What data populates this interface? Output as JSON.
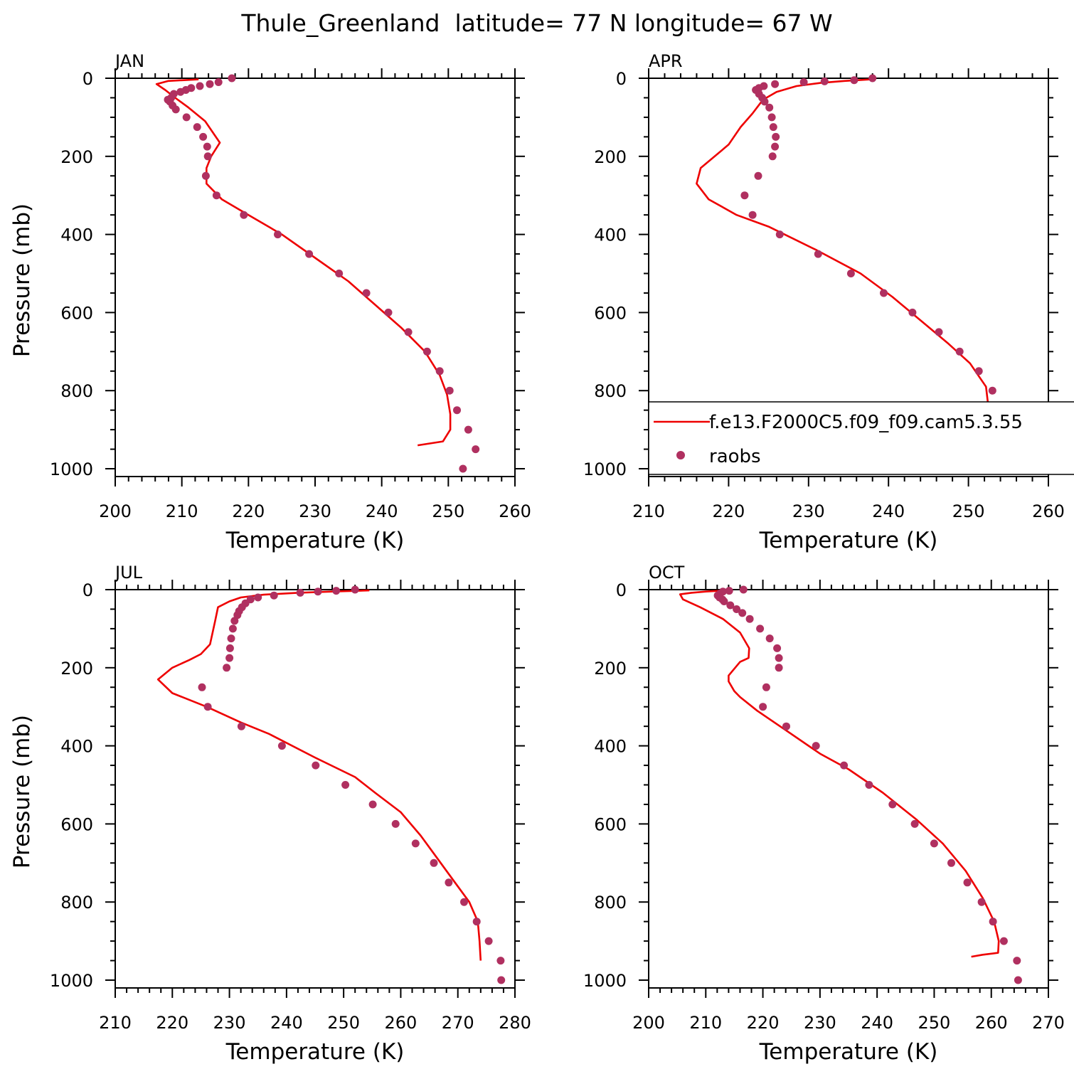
{
  "title": "Thule_Greenland  latitude= 77 N longitude= 67 W",
  "colors": {
    "model": "#ee0000",
    "obs": "#b03060",
    "axis": "#000000"
  },
  "legend": {
    "model_label": "f.e13.F2000C5.f09_f09.cam5.3.55",
    "obs_label": "raobs"
  },
  "chart_data": [
    {
      "type": "line",
      "panel": "JAN",
      "xlabel": "Temperature (K)",
      "ylabel": "Pressure (mb)",
      "xlim": [
        200,
        260
      ],
      "ylim": [
        1020,
        0
      ],
      "xticks": [
        "200",
        "210",
        "220",
        "230",
        "240",
        "250",
        "260"
      ],
      "yticks": [
        "0",
        "200",
        "400",
        "600",
        "800",
        "1000"
      ],
      "series": [
        {
          "kind": "model-line",
          "points": [
            [
              212.5,
              3
            ],
            [
              208,
              7
            ],
            [
              206.2,
              15
            ],
            [
              207.5,
              30
            ],
            [
              209,
              50
            ],
            [
              211,
              75
            ],
            [
              213.5,
              110
            ],
            [
              215.7,
              165
            ],
            [
              214.4,
              200
            ],
            [
              213.7,
              230
            ],
            [
              213.7,
              270
            ],
            [
              216,
              310
            ],
            [
              220,
              350
            ],
            [
              225,
              400
            ],
            [
              230,
              460
            ],
            [
              235,
              520
            ],
            [
              239,
              580
            ],
            [
              243,
              640
            ],
            [
              246.5,
              700
            ],
            [
              248.7,
              760
            ],
            [
              249.8,
              810
            ],
            [
              250.3,
              860
            ],
            [
              250.3,
              900
            ],
            [
              249.2,
              930
            ],
            [
              245.4,
              940
            ]
          ]
        },
        {
          "kind": "obs-points",
          "points": [
            [
              217.5,
              0
            ],
            [
              215.5,
              10
            ],
            [
              214.2,
              15
            ],
            [
              212.7,
              20
            ],
            [
              211.4,
              25
            ],
            [
              210.6,
              30
            ],
            [
              209.8,
              35
            ],
            [
              208.8,
              40
            ],
            [
              208.4,
              50
            ],
            [
              207.9,
              55
            ],
            [
              208.2,
              60
            ],
            [
              208.6,
              70
            ],
            [
              209.1,
              80
            ],
            [
              210.7,
              100
            ],
            [
              212.3,
              125
            ],
            [
              213.2,
              150
            ],
            [
              213.8,
              175
            ],
            [
              213.9,
              200
            ],
            [
              213.6,
              250
            ],
            [
              215.2,
              300
            ],
            [
              219.3,
              350
            ],
            [
              224.4,
              400
            ],
            [
              229.1,
              450
            ],
            [
              233.6,
              500
            ],
            [
              237.7,
              550
            ],
            [
              241,
              600
            ],
            [
              244,
              650
            ],
            [
              246.8,
              700
            ],
            [
              248.7,
              750
            ],
            [
              250.2,
              800
            ],
            [
              251.3,
              850
            ],
            [
              253,
              900
            ],
            [
              254.1,
              950
            ],
            [
              252.2,
              1000
            ]
          ]
        }
      ]
    },
    {
      "type": "line",
      "panel": "APR",
      "xlabel": "Temperature (K)",
      "ylabel": "",
      "xlim": [
        210,
        260
      ],
      "ylim": [
        1020,
        0
      ],
      "xticks": [
        "210",
        "220",
        "230",
        "240",
        "250",
        "260"
      ],
      "yticks": [
        "0",
        "200",
        "400",
        "600",
        "800",
        "1000"
      ],
      "series": [
        {
          "kind": "model-line",
          "points": [
            [
              237.8,
              3
            ],
            [
              234.5,
              7
            ],
            [
              231.5,
              12
            ],
            [
              228.5,
              20
            ],
            [
              226,
              35
            ],
            [
              224.3,
              55
            ],
            [
              223,
              90
            ],
            [
              221.5,
              125
            ],
            [
              220,
              170
            ],
            [
              216.5,
              230
            ],
            [
              216,
              270
            ],
            [
              217.5,
              310
            ],
            [
              221,
              350
            ],
            [
              225,
              380
            ],
            [
              231,
              440
            ],
            [
              236.5,
              500
            ],
            [
              240.5,
              560
            ],
            [
              244,
              620
            ],
            [
              247.5,
              680
            ],
            [
              250.2,
              730
            ],
            [
              252.2,
              790
            ],
            [
              252.6,
              860
            ],
            [
              252.3,
              900
            ],
            [
              251.3,
              930
            ],
            [
              249.3,
              950
            ]
          ]
        },
        {
          "kind": "obs-points",
          "points": [
            [
              238,
              0
            ],
            [
              235.7,
              5
            ],
            [
              232,
              8
            ],
            [
              229.4,
              10
            ],
            [
              225.8,
              15
            ],
            [
              224.4,
              20
            ],
            [
              223.8,
              25
            ],
            [
              223.4,
              30
            ],
            [
              223.8,
              40
            ],
            [
              224.2,
              50
            ],
            [
              224.5,
              60
            ],
            [
              225.1,
              75
            ],
            [
              225.4,
              100
            ],
            [
              225.6,
              125
            ],
            [
              225.9,
              150
            ],
            [
              225.8,
              175
            ],
            [
              225.5,
              200
            ],
            [
              223.7,
              250
            ],
            [
              222,
              300
            ],
            [
              223,
              350
            ],
            [
              226.4,
              400
            ],
            [
              231.2,
              450
            ],
            [
              235.3,
              500
            ],
            [
              239.4,
              550
            ],
            [
              243,
              600
            ],
            [
              246.3,
              650
            ],
            [
              248.9,
              700
            ],
            [
              251.3,
              750
            ],
            [
              253,
              800
            ],
            [
              254.2,
              850
            ],
            [
              256,
              900
            ],
            [
              257,
              950
            ],
            [
              257,
              1000
            ]
          ]
        }
      ]
    },
    {
      "type": "line",
      "panel": "JUL",
      "xlabel": "Temperature (K)",
      "ylabel": "Pressure (mb)",
      "xlim": [
        210,
        280
      ],
      "ylim": [
        1020,
        0
      ],
      "xticks": [
        "210",
        "220",
        "230",
        "240",
        "250",
        "260",
        "270",
        "280"
      ],
      "yticks": [
        "0",
        "200",
        "400",
        "600",
        "800",
        "1000"
      ],
      "series": [
        {
          "kind": "model-line",
          "points": [
            [
              254.5,
              2
            ],
            [
              248,
              5
            ],
            [
              242,
              8
            ],
            [
              236,
              13
            ],
            [
              232,
              20
            ],
            [
              230,
              30
            ],
            [
              228,
              45
            ],
            [
              227.5,
              80
            ],
            [
              226.6,
              140
            ],
            [
              225,
              165
            ],
            [
              223,
              180
            ],
            [
              220,
              200
            ],
            [
              217.5,
              230
            ],
            [
              220,
              265
            ],
            [
              226,
              300
            ],
            [
              232,
              340
            ],
            [
              237,
              370
            ],
            [
              245,
              430
            ],
            [
              252,
              480
            ],
            [
              255.5,
              520
            ],
            [
              260,
              570
            ],
            [
              263.5,
              630
            ],
            [
              266.5,
              690
            ],
            [
              269.5,
              750
            ],
            [
              272,
              800
            ],
            [
              273.5,
              850
            ],
            [
              273.8,
              900
            ],
            [
              274,
              950
            ]
          ]
        },
        {
          "kind": "obs-points",
          "points": [
            [
              252,
              0
            ],
            [
              248.7,
              3
            ],
            [
              245.5,
              5
            ],
            [
              242.4,
              8
            ],
            [
              237.8,
              15
            ],
            [
              235,
              20
            ],
            [
              233.7,
              25
            ],
            [
              232.8,
              35
            ],
            [
              232.2,
              45
            ],
            [
              231.7,
              55
            ],
            [
              231.4,
              65
            ],
            [
              230.9,
              80
            ],
            [
              230.6,
              100
            ],
            [
              230.3,
              125
            ],
            [
              230.1,
              150
            ],
            [
              230,
              175
            ],
            [
              229.5,
              200
            ],
            [
              225.2,
              250
            ],
            [
              226.2,
              300
            ],
            [
              232.1,
              350
            ],
            [
              239.2,
              400
            ],
            [
              245.1,
              450
            ],
            [
              250.3,
              500
            ],
            [
              255.1,
              550
            ],
            [
              259.1,
              600
            ],
            [
              262.6,
              650
            ],
            [
              265.8,
              700
            ],
            [
              268.4,
              750
            ],
            [
              271.1,
              800
            ],
            [
              273.3,
              850
            ],
            [
              275.4,
              900
            ],
            [
              277.5,
              950
            ],
            [
              277.6,
              1000
            ]
          ]
        }
      ]
    },
    {
      "type": "line",
      "panel": "OCT",
      "xlabel": "Temperature (K)",
      "ylabel": "",
      "xlim": [
        200,
        270
      ],
      "ylim": [
        1020,
        0
      ],
      "xticks": [
        "200",
        "210",
        "220",
        "230",
        "240",
        "250",
        "260",
        "270"
      ],
      "yticks": [
        "0",
        "200",
        "400",
        "600",
        "800",
        "1000"
      ],
      "series": [
        {
          "kind": "model-line",
          "points": [
            [
              213.5,
              2
            ],
            [
              210,
              5
            ],
            [
              207.5,
              8
            ],
            [
              205.5,
              12
            ],
            [
              206,
              25
            ],
            [
              209,
              45
            ],
            [
              213,
              75
            ],
            [
              216,
              110
            ],
            [
              217.6,
              150
            ],
            [
              217.5,
              175
            ],
            [
              216,
              185
            ],
            [
              214,
              220
            ],
            [
              214,
              235
            ],
            [
              215,
              260
            ],
            [
              216,
              275
            ],
            [
              219,
              310
            ],
            [
              224,
              360
            ],
            [
              230,
              420
            ],
            [
              235,
              460
            ],
            [
              241,
              520
            ],
            [
              247,
              590
            ],
            [
              251.5,
              650
            ],
            [
              255.5,
              720
            ],
            [
              258.5,
              790
            ],
            [
              260.5,
              850
            ],
            [
              261.3,
              900
            ],
            [
              261.2,
              930
            ],
            [
              258.5,
              935
            ],
            [
              256.5,
              940
            ]
          ]
        },
        {
          "kind": "obs-points",
          "points": [
            [
              216.6,
              0
            ],
            [
              214.1,
              3
            ],
            [
              213,
              5
            ],
            [
              212.5,
              10
            ],
            [
              212.1,
              15
            ],
            [
              212.4,
              20
            ],
            [
              212.9,
              25
            ],
            [
              213.2,
              30
            ],
            [
              214.3,
              40
            ],
            [
              215.4,
              50
            ],
            [
              216.4,
              60
            ],
            [
              217.7,
              75
            ],
            [
              219.5,
              100
            ],
            [
              221.2,
              125
            ],
            [
              222.5,
              150
            ],
            [
              222.8,
              175
            ],
            [
              222.8,
              200
            ],
            [
              220.6,
              250
            ],
            [
              220,
              300
            ],
            [
              224.1,
              350
            ],
            [
              229.3,
              400
            ],
            [
              234.2,
              450
            ],
            [
              238.6,
              500
            ],
            [
              242.7,
              550
            ],
            [
              246.6,
              600
            ],
            [
              250,
              650
            ],
            [
              253,
              700
            ],
            [
              255.8,
              750
            ],
            [
              258.3,
              800
            ],
            [
              260.3,
              850
            ],
            [
              262.2,
              900
            ],
            [
              264.5,
              950
            ],
            [
              264.7,
              1000
            ]
          ]
        }
      ]
    }
  ]
}
